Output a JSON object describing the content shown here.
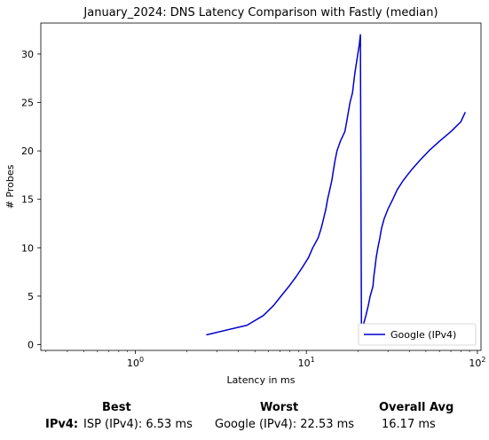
{
  "chart_data": {
    "type": "line",
    "title": "January_2024: DNS Latency Comparison with Fastly (median)",
    "xlabel": "Latency in ms",
    "ylabel": "# Probes",
    "xscale": "log",
    "xlim": [
      0.28,
      105
    ],
    "ylim": [
      -0.6,
      33.2
    ],
    "xticks": [
      {
        "value": 1,
        "label": "10^0"
      },
      {
        "value": 10,
        "label": "10^1"
      },
      {
        "value": 100,
        "label": "10^2"
      }
    ],
    "yticks": [
      0,
      5,
      10,
      15,
      20,
      25,
      30
    ],
    "legend_position": "lower-right",
    "grid": false,
    "series": [
      {
        "name": "Google (IPv4)",
        "color": "#0000cc",
        "x": [
          2.6,
          4.5,
          5.6,
          6.4,
          7.1,
          7.9,
          8.7,
          9.5,
          10.3,
          10.9,
          11.7,
          12.2,
          12.6,
          13.0,
          13.3,
          13.7,
          14.1,
          14.4,
          14.7,
          15.1,
          15.8,
          16.8,
          17.2,
          17.6,
          18.0,
          18.6,
          18.9,
          19.2,
          19.6,
          20.0,
          20.4,
          20.7,
          21.0,
          21.5,
          22.3,
          23.0,
          23.6,
          24.5,
          24.8,
          25.2,
          25.6,
          26.2,
          26.9,
          27.5,
          28.5,
          30.0,
          32.0,
          34.0,
          37.0,
          41.0,
          46.0,
          52.0,
          60.0,
          70.0,
          80.0,
          85.0
        ],
        "y": [
          1,
          2,
          3,
          4,
          5,
          6,
          7,
          8,
          9,
          10,
          11,
          12,
          13,
          14,
          15,
          16,
          17,
          18,
          19,
          20,
          21,
          22,
          23,
          24,
          25,
          26,
          27,
          28,
          29,
          30,
          31,
          32,
          1,
          2,
          3,
          4,
          5,
          6,
          7,
          8,
          9,
          10,
          11,
          12,
          13,
          14,
          15,
          16,
          17,
          18,
          19,
          20,
          21,
          22,
          23,
          24
        ]
      }
    ]
  },
  "summary": {
    "best_header": "Best",
    "worst_header": "Worst",
    "avg_header": "Overall Avg",
    "row_label": "IPv4:",
    "best": "ISP (IPv4): 6.53 ms",
    "worst": "Google (IPv4): 22.53 ms",
    "avg": "16.17 ms"
  }
}
